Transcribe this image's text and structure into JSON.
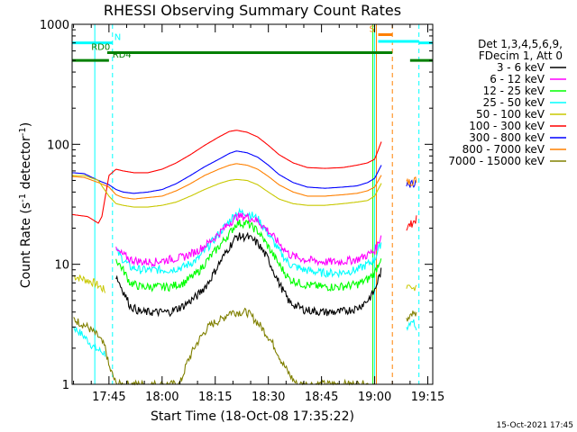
{
  "chart_data": {
    "type": "line",
    "title": "RHESSI Observing Summary Count Rates",
    "xlabel": "Start Time (18-Oct-08 17:35:22)",
    "ylabel_main": "Count Rate (s",
    "ylabel_sup1": "-1",
    "ylabel_mid": " detector",
    "ylabel_sup2": "-1",
    "ylabel_end": ")",
    "y_scale": "log",
    "ylim": [
      1,
      1000
    ],
    "xlim_min": [
      -0.4,
      101.4
    ],
    "x_ticks": [
      {
        "m": 10,
        "label": "17:45"
      },
      {
        "m": 25,
        "label": "18:00"
      },
      {
        "m": 40,
        "label": "18:15"
      },
      {
        "m": 55,
        "label": "18:30"
      },
      {
        "m": 70,
        "label": "18:45"
      },
      {
        "m": 85,
        "label": "19:00"
      },
      {
        "m": 100,
        "label": "19:15"
      }
    ],
    "y_ticks": [
      {
        "v": 1,
        "label": "1"
      },
      {
        "v": 10,
        "label": "10"
      },
      {
        "v": 100,
        "label": "100"
      },
      {
        "v": 1000,
        "label": "1000"
      }
    ],
    "legend_header": [
      "Det 1,3,4,5,6,9,",
      "FDecim 1, Att 0"
    ],
    "legend_placement": "right",
    "series": [
      {
        "name": "3 - 6 keV",
        "color": "#000000",
        "points": [
          [
            12,
            8
          ],
          [
            14,
            6
          ],
          [
            16,
            4.5
          ],
          [
            19,
            4
          ],
          [
            23,
            4
          ],
          [
            27,
            4
          ],
          [
            31,
            4.5
          ],
          [
            35,
            5.5
          ],
          [
            38,
            7
          ],
          [
            41,
            10
          ],
          [
            44,
            14
          ],
          [
            46,
            17
          ],
          [
            49,
            17
          ],
          [
            52,
            15
          ],
          [
            55,
            11
          ],
          [
            58,
            7
          ],
          [
            61,
            4.8
          ],
          [
            65,
            4.2
          ],
          [
            70,
            4
          ],
          [
            75,
            4
          ],
          [
            80,
            4.3
          ],
          [
            83,
            5
          ],
          [
            85,
            6
          ],
          [
            86,
            7.5
          ],
          [
            87,
            9
          ]
        ]
      },
      {
        "name": "6 - 12 keV",
        "color": "#ff00ff",
        "points": [
          [
            12,
            13
          ],
          [
            14,
            12
          ],
          [
            16,
            11
          ],
          [
            19,
            10.5
          ],
          [
            23,
            10.5
          ],
          [
            27,
            11
          ],
          [
            31,
            11.5
          ],
          [
            35,
            13
          ],
          [
            38,
            15
          ],
          [
            41,
            18
          ],
          [
            44,
            22
          ],
          [
            46,
            25
          ],
          [
            49,
            25
          ],
          [
            52,
            23
          ],
          [
            55,
            19
          ],
          [
            58,
            15
          ],
          [
            61,
            12
          ],
          [
            65,
            11
          ],
          [
            70,
            10.5
          ],
          [
            75,
            10.5
          ],
          [
            80,
            11
          ],
          [
            83,
            12
          ],
          [
            85,
            13
          ],
          [
            86,
            15
          ],
          [
            87,
            18
          ]
        ]
      },
      {
        "name": "12 - 25 keV",
        "color": "#00ff00",
        "points": [
          [
            12,
            11
          ],
          [
            14,
            9
          ],
          [
            16,
            7
          ],
          [
            19,
            6.5
          ],
          [
            23,
            6.5
          ],
          [
            27,
            6.5
          ],
          [
            31,
            7
          ],
          [
            35,
            8.5
          ],
          [
            38,
            11
          ],
          [
            41,
            14
          ],
          [
            44,
            18
          ],
          [
            46,
            22
          ],
          [
            49,
            22
          ],
          [
            52,
            19
          ],
          [
            55,
            14
          ],
          [
            58,
            10
          ],
          [
            61,
            7.5
          ],
          [
            65,
            6.8
          ],
          [
            70,
            6.5
          ],
          [
            75,
            6.5
          ],
          [
            80,
            6.8
          ],
          [
            83,
            7.5
          ],
          [
            85,
            8.5
          ],
          [
            86,
            10
          ],
          [
            87,
            12
          ]
        ]
      },
      {
        "name": "25 - 50 keV",
        "color": "#00ffff",
        "points": [
          [
            12,
            13
          ],
          [
            14,
            11
          ],
          [
            16,
            9.5
          ],
          [
            19,
            9
          ],
          [
            23,
            9
          ],
          [
            27,
            9
          ],
          [
            31,
            9.5
          ],
          [
            35,
            11
          ],
          [
            38,
            14
          ],
          [
            41,
            18
          ],
          [
            44,
            23
          ],
          [
            46,
            27
          ],
          [
            49,
            27
          ],
          [
            52,
            24
          ],
          [
            55,
            18
          ],
          [
            58,
            13
          ],
          [
            61,
            10
          ],
          [
            65,
            9
          ],
          [
            70,
            8.5
          ],
          [
            75,
            8.5
          ],
          [
            80,
            9
          ],
          [
            83,
            10
          ],
          [
            85,
            11
          ],
          [
            86,
            13
          ],
          [
            87,
            16
          ]
        ]
      },
      {
        "name": "50 - 100 keV",
        "color": "#c8c800",
        "points": [
          [
            -0.4,
            55
          ],
          [
            3,
            55
          ],
          [
            7,
            50
          ],
          [
            8,
            45
          ],
          [
            10,
            37
          ],
          [
            12,
            32
          ],
          [
            14,
            31
          ],
          [
            17,
            30
          ],
          [
            21,
            30
          ],
          [
            25,
            31
          ],
          [
            29,
            33
          ],
          [
            33,
            37
          ],
          [
            37,
            42
          ],
          [
            41,
            47
          ],
          [
            44,
            50
          ],
          [
            46,
            51
          ],
          [
            49,
            50
          ],
          [
            52,
            46
          ],
          [
            55,
            40
          ],
          [
            58,
            35
          ],
          [
            62,
            32
          ],
          [
            66,
            31
          ],
          [
            71,
            31
          ],
          [
            76,
            32
          ],
          [
            80,
            33
          ],
          [
            83,
            34
          ],
          [
            85,
            37
          ],
          [
            87,
            48
          ]
        ]
      },
      {
        "name": "100 - 300 keV",
        "color": "#ff0000",
        "points": [
          [
            -0.4,
            26
          ],
          [
            4,
            25
          ],
          [
            7,
            22
          ],
          [
            8,
            25
          ],
          [
            10,
            55
          ],
          [
            12,
            62
          ],
          [
            14,
            60
          ],
          [
            17,
            58
          ],
          [
            21,
            58
          ],
          [
            25,
            62
          ],
          [
            29,
            70
          ],
          [
            33,
            82
          ],
          [
            37,
            98
          ],
          [
            41,
            115
          ],
          [
            44,
            128
          ],
          [
            46,
            131
          ],
          [
            49,
            126
          ],
          [
            52,
            115
          ],
          [
            55,
            98
          ],
          [
            58,
            82
          ],
          [
            62,
            70
          ],
          [
            66,
            64
          ],
          [
            71,
            63
          ],
          [
            76,
            64
          ],
          [
            80,
            67
          ],
          [
            83,
            70
          ],
          [
            85,
            75
          ],
          [
            87,
            107
          ]
        ]
      },
      {
        "name": "300 - 800 keV",
        "color": "#0000ff",
        "points": [
          [
            -0.4,
            58
          ],
          [
            3,
            57
          ],
          [
            7,
            50
          ],
          [
            10,
            46
          ],
          [
            12,
            42
          ],
          [
            14,
            40
          ],
          [
            17,
            39
          ],
          [
            21,
            40
          ],
          [
            25,
            42
          ],
          [
            29,
            47
          ],
          [
            33,
            55
          ],
          [
            37,
            65
          ],
          [
            41,
            75
          ],
          [
            44,
            84
          ],
          [
            46,
            88
          ],
          [
            49,
            85
          ],
          [
            52,
            78
          ],
          [
            55,
            67
          ],
          [
            58,
            56
          ],
          [
            62,
            48
          ],
          [
            66,
            44
          ],
          [
            71,
            43
          ],
          [
            76,
            44
          ],
          [
            80,
            45
          ],
          [
            83,
            48
          ],
          [
            85,
            52
          ],
          [
            87,
            68
          ]
        ]
      },
      {
        "name": "800 - 7000 keV",
        "color": "#ff8000",
        "points": [
          [
            -0.4,
            54
          ],
          [
            3,
            53
          ],
          [
            7,
            48
          ],
          [
            10,
            44
          ],
          [
            12,
            38
          ],
          [
            14,
            36
          ],
          [
            17,
            35
          ],
          [
            21,
            36
          ],
          [
            25,
            37
          ],
          [
            29,
            41
          ],
          [
            33,
            47
          ],
          [
            37,
            55
          ],
          [
            41,
            62
          ],
          [
            44,
            67
          ],
          [
            46,
            69
          ],
          [
            49,
            67
          ],
          [
            52,
            62
          ],
          [
            55,
            54
          ],
          [
            58,
            46
          ],
          [
            62,
            40
          ],
          [
            66,
            37
          ],
          [
            71,
            37
          ],
          [
            76,
            38
          ],
          [
            80,
            39
          ],
          [
            83,
            41
          ],
          [
            85,
            44
          ],
          [
            87,
            56
          ]
        ]
      },
      {
        "name": "7000 - 15000 keV",
        "color": "#808000",
        "points": [
          [
            0,
            3.5
          ],
          [
            4,
            3
          ],
          [
            7,
            2.5
          ],
          [
            9,
            2
          ],
          [
            10,
            1.4
          ],
          [
            11,
            1.2
          ],
          [
            12,
            1
          ],
          [
            25,
            1
          ],
          [
            30,
            1
          ],
          [
            32,
            1.5
          ],
          [
            34,
            2
          ],
          [
            36,
            2.5
          ],
          [
            38,
            3
          ],
          [
            40,
            3.3
          ],
          [
            42,
            3.5
          ],
          [
            44,
            4
          ],
          [
            46,
            4
          ],
          [
            49,
            4
          ],
          [
            51,
            3.5
          ],
          [
            53,
            3
          ],
          [
            55,
            2.5
          ],
          [
            57,
            2
          ],
          [
            59,
            1.5
          ],
          [
            61,
            1.2
          ],
          [
            63,
            1
          ],
          [
            70,
            1
          ],
          [
            80,
            1
          ],
          [
            85,
            1
          ]
        ]
      }
    ],
    "late_segments": [
      {
        "color": "#c8c800",
        "points": [
          [
            94,
            6.5
          ],
          [
            95.5,
            6
          ],
          [
            97,
            7
          ]
        ]
      },
      {
        "color": "#ff0000",
        "points": [
          [
            94,
            20
          ],
          [
            95.5,
            22
          ],
          [
            97,
            24
          ]
        ]
      },
      {
        "color": "#0000ff",
        "points": [
          [
            94,
            45
          ],
          [
            95.5,
            47
          ],
          [
            97,
            49
          ]
        ]
      },
      {
        "color": "#ff8000",
        "points": [
          [
            94,
            48
          ],
          [
            95.5,
            49
          ],
          [
            97,
            51
          ]
        ]
      },
      {
        "color": "#00ffff",
        "points": [
          [
            94,
            3
          ],
          [
            95.5,
            3.5
          ],
          [
            97,
            3
          ]
        ]
      },
      {
        "color": "#808000",
        "points": [
          [
            94,
            3.5
          ],
          [
            95.5,
            4
          ],
          [
            97,
            3.7
          ]
        ]
      }
    ],
    "early_low_segments": [
      {
        "color": "#c8c800",
        "points": [
          [
            0,
            8
          ],
          [
            3,
            7.5
          ],
          [
            6,
            7
          ],
          [
            9,
            6
          ]
        ]
      },
      {
        "color": "#00ffff",
        "points": [
          [
            0,
            3
          ],
          [
            3,
            2.5
          ],
          [
            6,
            2
          ],
          [
            9,
            1.8
          ]
        ]
      }
    ],
    "state_bars": [
      {
        "label": "N",
        "color": "#00ffff",
        "y": 700,
        "x0": -0.4,
        "x1": 11,
        "dash_x": 11,
        "label_x": 11.5
      },
      {
        "label": "N",
        "color": "#00ffff",
        "y": 700,
        "x0": 97.5,
        "x1": 101.4,
        "dash_x": 97.5,
        "label_x": null
      },
      {
        "label": "RD0",
        "color": "#008000",
        "y": 580,
        "x0": 9.5,
        "x1": 90,
        "dash_x": null,
        "label_x": 5
      },
      {
        "label": "RD4",
        "color": "#008000",
        "y": 500,
        "x0": -0.4,
        "x1": 10,
        "dash_x": null,
        "label_x": 11
      },
      {
        "label": "",
        "color": "#008000",
        "y": 500,
        "x0": 95,
        "x1": 101.4,
        "dash_x": null,
        "label_x": null
      },
      {
        "label": "S",
        "color": "#ff8000",
        "y": 820,
        "x0": 86,
        "x1": 90,
        "dash_x": 90,
        "label_x": 83.5
      },
      {
        "label": "",
        "color": "#00ffff",
        "y": 720,
        "x0": 86,
        "x1": 97.5,
        "dash_x": null,
        "label_x": null
      }
    ],
    "vertical_lines": [
      {
        "color": "#00ffff",
        "x": 6,
        "style": "solid"
      },
      {
        "color": "#00ffff",
        "x": 11,
        "style": "dash"
      },
      {
        "color": "#00ff00",
        "x": 84.5,
        "style": "solid"
      },
      {
        "color": "#00ffff",
        "x": 85,
        "style": "solid"
      },
      {
        "color": "#ff8000",
        "x": 85.5,
        "style": "solid"
      },
      {
        "color": "#ff8000",
        "x": 90,
        "style": "dash"
      },
      {
        "color": "#00ffff",
        "x": 97.5,
        "style": "dash"
      }
    ],
    "footer": "15-Oct-2021 17:45"
  }
}
